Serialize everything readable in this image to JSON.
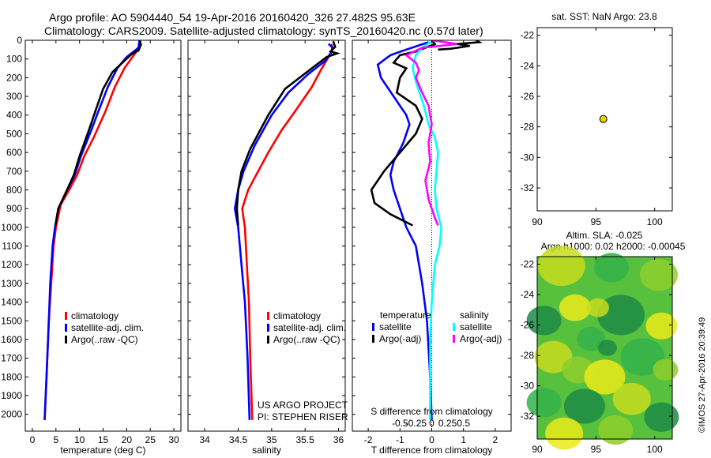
{
  "figure": {
    "title_line1": "Argo profile: AO 5904440_54 19-Apr-2016 20160420_326 27.482S 95.63E",
    "title_line2": "Climatology: CARS2009. Satellite-adjusted climatology: synTS_20160420.nc (0.57d later)",
    "project_line1": "US ARGO PROJECT",
    "project_line2": "PI: STEPHEN RISER",
    "credit": "©IMOS 27-Apr-2016 20:39:49"
  },
  "colors": {
    "climatology": "#ff0000",
    "satellite": "#0000ff",
    "argo": "#000000",
    "sal_satellite": "#00ffff",
    "sal_argo": "#ff00ff",
    "dot": "#e8d200"
  },
  "chart_data": [
    {
      "type": "line",
      "xlabel": "temperature (deg C)",
      "ylabel": "",
      "xlim": [
        -1.5,
        31.5
      ],
      "ylim": [
        2090,
        0
      ],
      "xticks": [
        0,
        5,
        10,
        15,
        20,
        25,
        30
      ],
      "yticks": [
        0,
        100,
        200,
        300,
        400,
        500,
        600,
        700,
        800,
        900,
        1000,
        1100,
        1200,
        1300,
        1400,
        1500,
        1600,
        1700,
        1800,
        1900,
        2000
      ],
      "legend": [
        "climatology",
        "satellite-adj. clim.",
        "Argo(..raw -QC)"
      ],
      "series": [
        {
          "name": "climatology",
          "color": "#ff0000",
          "points": [
            [
              22.8,
              0
            ],
            [
              22.6,
              40
            ],
            [
              21.5,
              80
            ],
            [
              19.5,
              150
            ],
            [
              17.5,
              250
            ],
            [
              15.5,
              380
            ],
            [
              13,
              520
            ],
            [
              11,
              620
            ],
            [
              9.5,
              720
            ],
            [
              7.8,
              800
            ],
            [
              6,
              880
            ],
            [
              5,
              1000
            ],
            [
              4.5,
              1100
            ],
            [
              4,
              1300
            ],
            [
              3.5,
              1500
            ],
            [
              3,
              1800
            ],
            [
              2.6,
              2030
            ]
          ]
        },
        {
          "name": "satellite-adj. clim.",
          "color": "#0000ff",
          "points": [
            [
              22.7,
              0
            ],
            [
              22.5,
              40
            ],
            [
              20,
              90
            ],
            [
              18,
              150
            ],
            [
              16,
              250
            ],
            [
              14,
              380
            ],
            [
              12.5,
              480
            ],
            [
              10.3,
              620
            ],
            [
              9,
              720
            ],
            [
              7,
              820
            ],
            [
              5.5,
              900
            ],
            [
              4.8,
              1000
            ],
            [
              4.3,
              1100
            ],
            [
              3.8,
              1300
            ],
            [
              3.5,
              1500
            ],
            [
              3,
              1800
            ],
            [
              2.6,
              2030
            ]
          ]
        },
        {
          "name": "Argo(..raw -QC)",
          "color": "#000000",
          "points": [
            [
              22.8,
              0
            ],
            [
              23,
              25
            ],
            [
              22.5,
              55
            ],
            [
              21,
              75
            ],
            [
              19.5,
              110
            ],
            [
              17,
              170
            ],
            [
              15,
              260
            ],
            [
              13.5,
              370
            ],
            [
              12,
              480
            ],
            [
              10,
              620
            ],
            [
              8.8,
              720
            ],
            [
              7,
              820
            ],
            [
              5.5,
              900
            ],
            [
              4.9,
              990
            ]
          ]
        }
      ]
    },
    {
      "type": "line",
      "xlabel": "salinity",
      "ylabel": "",
      "xlim": [
        33.75,
        36.1
      ],
      "ylim": [
        2090,
        0
      ],
      "xticks": [
        34,
        34.5,
        35,
        35.5,
        36
      ],
      "legend": [
        "climatology",
        "satellite-adj. clim.",
        "Argo(..raw -QC)"
      ],
      "series": [
        {
          "name": "climatology",
          "color": "#ff0000",
          "points": [
            [
              35.9,
              20
            ],
            [
              35.9,
              60
            ],
            [
              35.85,
              90
            ],
            [
              35.75,
              150
            ],
            [
              35.6,
              250
            ],
            [
              35.35,
              380
            ],
            [
              35.15,
              480
            ],
            [
              34.95,
              600
            ],
            [
              34.8,
              700
            ],
            [
              34.65,
              800
            ],
            [
              34.56,
              900
            ],
            [
              34.6,
              1000
            ],
            [
              34.63,
              1200
            ],
            [
              34.66,
              1400
            ],
            [
              34.68,
              1700
            ],
            [
              34.71,
              2030
            ]
          ]
        },
        {
          "name": "satellite-adj. clim.",
          "color": "#0000ff",
          "points": [
            [
              35.85,
              20
            ],
            [
              35.92,
              40
            ],
            [
              35.88,
              70
            ],
            [
              35.8,
              110
            ],
            [
              35.55,
              180
            ],
            [
              35.25,
              280
            ],
            [
              35,
              400
            ],
            [
              34.75,
              560
            ],
            [
              34.58,
              700
            ],
            [
              34.5,
              800
            ],
            [
              34.45,
              900
            ],
            [
              34.5,
              1000
            ],
            [
              34.55,
              1200
            ],
            [
              34.6,
              1400
            ],
            [
              34.64,
              1700
            ],
            [
              34.67,
              2030
            ]
          ]
        },
        {
          "name": "Argo(..raw -QC)",
          "color": "#000000",
          "points": [
            [
              35.92,
              5
            ],
            [
              35.95,
              35
            ],
            [
              35.88,
              60
            ],
            [
              35.98,
              70
            ],
            [
              35.82,
              90
            ],
            [
              35.6,
              150
            ],
            [
              35.2,
              260
            ],
            [
              34.95,
              400
            ],
            [
              34.68,
              580
            ],
            [
              34.55,
              700
            ],
            [
              34.5,
              800
            ],
            [
              34.48,
              900
            ],
            [
              34.5,
              990
            ]
          ]
        }
      ]
    },
    {
      "type": "line",
      "xlabel": "T difference from climatology",
      "x2label": "S difference from climatology",
      "ylabel": "",
      "xlim": [
        -2.5,
        2.5
      ],
      "ylim": [
        2090,
        0
      ],
      "xticks": [
        -2,
        -1,
        0,
        1,
        2
      ],
      "x2ticks": [
        "-0.5",
        "-0.25",
        "0",
        "0.25",
        "0.5"
      ],
      "legend_groups": [
        "temperature",
        "salinity"
      ],
      "legend": [
        "satellite",
        "Argo(-adj)",
        "satellite",
        "Argo(-adj)"
      ],
      "series": [
        {
          "name": "satellite",
          "group": "temperature",
          "color": "#0000ff",
          "points": [
            [
              -0.1,
              10
            ],
            [
              -0.8,
              50
            ],
            [
              -1.3,
              80
            ],
            [
              -1.7,
              130
            ],
            [
              -1.6,
              200
            ],
            [
              -1.2,
              300
            ],
            [
              -0.8,
              400
            ],
            [
              -0.7,
              450
            ],
            [
              -0.9,
              550
            ],
            [
              -1.2,
              650
            ],
            [
              -1.3,
              720
            ],
            [
              -1.2,
              800
            ],
            [
              -1,
              900
            ],
            [
              -0.8,
              1000
            ],
            [
              -0.5,
              1100
            ],
            [
              -0.3,
              1300
            ],
            [
              -0.15,
              1500
            ],
            [
              -0.05,
              1800
            ],
            [
              0,
              2030
            ]
          ]
        },
        {
          "name": "Argo(-adj)",
          "group": "temperature",
          "color": "#000000",
          "points": [
            [
              0,
              0
            ],
            [
              0.1,
              20
            ],
            [
              -0.2,
              40
            ],
            [
              -0.5,
              60
            ],
            [
              -1,
              80
            ],
            [
              -1.2,
              120
            ],
            [
              -0.8,
              150
            ],
            [
              -1,
              200
            ],
            [
              -1.1,
              280
            ],
            [
              -0.5,
              350
            ],
            [
              -0.3,
              420
            ],
            [
              -0.5,
              500
            ],
            [
              -1,
              600
            ],
            [
              -1.5,
              700
            ],
            [
              -1.9,
              800
            ],
            [
              -1.8,
              870
            ],
            [
              -1.3,
              930
            ],
            [
              -0.6,
              990
            ]
          ]
        },
        {
          "name": "satellite",
          "group": "salinity",
          "color": "#00ffff",
          "points": [
            [
              0,
              5
            ],
            [
              -0.3,
              40
            ],
            [
              -0.5,
              80
            ],
            [
              -0.6,
              150
            ],
            [
              -0.5,
              220
            ],
            [
              -0.25,
              350
            ],
            [
              -0.1,
              450
            ],
            [
              0.1,
              520
            ],
            [
              0.2,
              600
            ],
            [
              0.15,
              700
            ],
            [
              0.1,
              800
            ],
            [
              0.15,
              900
            ],
            [
              0.3,
              1000
            ],
            [
              0.25,
              1100
            ],
            [
              0.1,
              1200
            ],
            [
              0,
              1400
            ],
            [
              -0.05,
              1600
            ],
            [
              -0.05,
              2030
            ]
          ]
        },
        {
          "name": "Argo(-adj)",
          "group": "salinity",
          "color": "#ff00ff",
          "points": [
            [
              0,
              0
            ],
            [
              0.8,
              20
            ],
            [
              -0.3,
              40
            ],
            [
              -0.8,
              80
            ],
            [
              -0.5,
              120
            ],
            [
              -0.4,
              160
            ],
            [
              -0.5,
              200
            ],
            [
              -0.3,
              280
            ],
            [
              -0.1,
              350
            ],
            [
              0,
              450
            ],
            [
              -0.1,
              550
            ],
            [
              -0.05,
              650
            ],
            [
              -0.2,
              750
            ],
            [
              -0.1,
              850
            ],
            [
              0.1,
              950
            ],
            [
              0.2,
              990
            ]
          ]
        },
        {
          "name": "argo-temp-top",
          "group": "temperature",
          "color": "#000000",
          "points": [
            [
              1.4,
              0
            ],
            [
              1.5,
              10
            ],
            [
              0.8,
              20
            ],
            [
              1.2,
              30
            ],
            [
              0.6,
              45
            ],
            [
              0.2,
              50
            ]
          ]
        }
      ]
    },
    {
      "type": "scatter",
      "title": "sat. SST: NaN Argo: 23.8",
      "xlabel": "",
      "ylabel": "",
      "xlim": [
        90,
        101.5
      ],
      "ylim": [
        -33.5,
        -21.5
      ],
      "xticks": [
        90,
        95,
        100
      ],
      "yticks": [
        -22,
        -24,
        -26,
        -28,
        -30,
        -32
      ],
      "series": [
        {
          "name": "",
          "color": "#e8d200",
          "points": [
            [
              95.63,
              -27.482
            ]
          ]
        }
      ]
    },
    {
      "type": "heatmap",
      "title": "Altim. SLA: -0.025",
      "subtitle": "Argo h1000: 0.02 h2000: -0.00045",
      "xlabel": "",
      "ylabel": "",
      "xlim": [
        90,
        101.5
      ],
      "ylim": [
        -33.5,
        -21.5
      ],
      "xticks": [
        90,
        95,
        100
      ],
      "yticks": [
        -22,
        -24,
        -26,
        -28,
        -30,
        -32
      ],
      "colors": [
        "#1d8a45",
        "#33b24a",
        "#57c03c",
        "#8fce2c",
        "#c8dc1e",
        "#eaea19"
      ]
    }
  ]
}
